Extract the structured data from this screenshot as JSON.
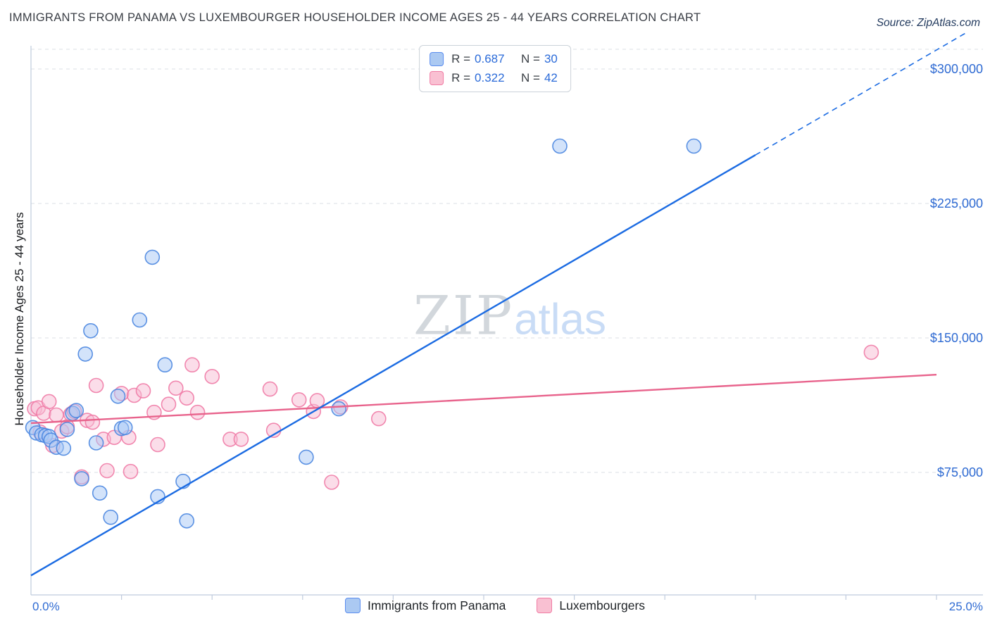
{
  "header": {
    "title": "IMMIGRANTS FROM PANAMA VS LUXEMBOURGER HOUSEHOLDER INCOME AGES 25 - 44 YEARS CORRELATION CHART",
    "source": "Source: ZipAtlas.com"
  },
  "legend_box": {
    "series": [
      {
        "r_label": "R =",
        "r_value": "0.687",
        "n_label": "N =",
        "n_value": "30"
      },
      {
        "r_label": "R =",
        "r_value": "0.322",
        "n_label": "N =",
        "n_value": "42"
      }
    ]
  },
  "watermark": {
    "zip": "ZIP",
    "atlas": "atlas"
  },
  "axes": {
    "y_label": "Householder Income Ages 25 - 44 years",
    "x_min_label": "0.0%",
    "x_max_label": "25.0%",
    "y_ticks": [
      {
        "label": "$300,000",
        "value": 300000
      },
      {
        "label": "$225,000",
        "value": 225000
      },
      {
        "label": "$150,000",
        "value": 150000
      },
      {
        "label": "$75,000",
        "value": 75000
      }
    ]
  },
  "bottom_legend": [
    {
      "label": "Immigrants from Panama"
    },
    {
      "label": "Luxembourgers"
    }
  ],
  "chart_data": {
    "type": "scatter",
    "title": "Immigrants from Panama vs Luxembourger Householder Income Ages 25 - 44 years",
    "x_axis": {
      "min_pct": 0,
      "max_pct": 25,
      "tick_step_pct": 2.5,
      "unit": "%"
    },
    "y_axis": {
      "gridline_values": [
        75000,
        150000,
        225000,
        300000
      ],
      "unit": "USD"
    },
    "series": [
      {
        "name": "Luxembourgers",
        "r": 0.322,
        "n": 42,
        "color": "#ef7ba6",
        "fill": "#f8bbd4",
        "points": [
          [
            0.1,
            110500
          ],
          [
            0.2,
            111000
          ],
          [
            0.25,
            97500
          ],
          [
            0.35,
            108000
          ],
          [
            0.5,
            114500
          ],
          [
            0.6,
            90000
          ],
          [
            0.7,
            107000
          ],
          [
            0.85,
            98000
          ],
          [
            1.0,
            100500
          ],
          [
            1.1,
            107500
          ],
          [
            1.2,
            109000
          ],
          [
            1.4,
            72500
          ],
          [
            1.55,
            104000
          ],
          [
            1.7,
            103000
          ],
          [
            1.8,
            123500
          ],
          [
            2.0,
            93500
          ],
          [
            2.1,
            76000
          ],
          [
            2.3,
            94500
          ],
          [
            2.5,
            119000
          ],
          [
            2.7,
            94500
          ],
          [
            2.75,
            75500
          ],
          [
            2.85,
            118000
          ],
          [
            3.1,
            120500
          ],
          [
            3.4,
            108500
          ],
          [
            3.5,
            90500
          ],
          [
            3.8,
            113000
          ],
          [
            4.0,
            122000
          ],
          [
            4.3,
            116500
          ],
          [
            4.45,
            135000
          ],
          [
            4.6,
            108500
          ],
          [
            5.0,
            128500
          ],
          [
            5.5,
            93500
          ],
          [
            5.8,
            93500
          ],
          [
            6.6,
            121500
          ],
          [
            6.7,
            98500
          ],
          [
            7.4,
            115500
          ],
          [
            7.8,
            109000
          ],
          [
            7.9,
            115000
          ],
          [
            8.3,
            69500
          ],
          [
            8.55,
            111500
          ],
          [
            9.6,
            105000
          ],
          [
            23.2,
            142000
          ]
        ]
      },
      {
        "name": "Immigrants from Panama",
        "r": 0.687,
        "n": 30,
        "color": "#4a86e0",
        "fill": "#a8c8f5",
        "points": [
          [
            0.05,
            100000
          ],
          [
            0.15,
            97000
          ],
          [
            0.3,
            96000
          ],
          [
            0.4,
            95500
          ],
          [
            0.5,
            95000
          ],
          [
            0.55,
            93000
          ],
          [
            0.7,
            89000
          ],
          [
            0.9,
            88500
          ],
          [
            1.0,
            99000
          ],
          [
            1.15,
            108000
          ],
          [
            1.25,
            109500
          ],
          [
            1.4,
            71500
          ],
          [
            1.5,
            141000
          ],
          [
            1.65,
            154000
          ],
          [
            1.8,
            91500
          ],
          [
            1.9,
            63500
          ],
          [
            2.2,
            50000
          ],
          [
            2.4,
            117500
          ],
          [
            2.5,
            99500
          ],
          [
            2.6,
            100000
          ],
          [
            3.0,
            160000
          ],
          [
            3.35,
            195000
          ],
          [
            3.5,
            61500
          ],
          [
            3.7,
            135000
          ],
          [
            4.2,
            70000
          ],
          [
            4.3,
            48000
          ],
          [
            7.6,
            83500
          ],
          [
            8.5,
            110500
          ],
          [
            14.6,
            257000
          ],
          [
            18.3,
            257000
          ]
        ]
      }
    ],
    "trend_lines": [
      {
        "series": "Luxembourgers",
        "color": "#e8638c",
        "solid": {
          "x": [
            0,
            25
          ],
          "y": [
            102500,
            129500
          ]
        }
      },
      {
        "series": "Immigrants from Panama",
        "color": "#1b6be2",
        "solid": {
          "x": [
            0,
            20
          ],
          "y": [
            17500,
            252000
          ]
        },
        "dashed": {
          "x": [
            20,
            25.8
          ],
          "y": [
            252000,
            320000
          ]
        }
      }
    ]
  }
}
